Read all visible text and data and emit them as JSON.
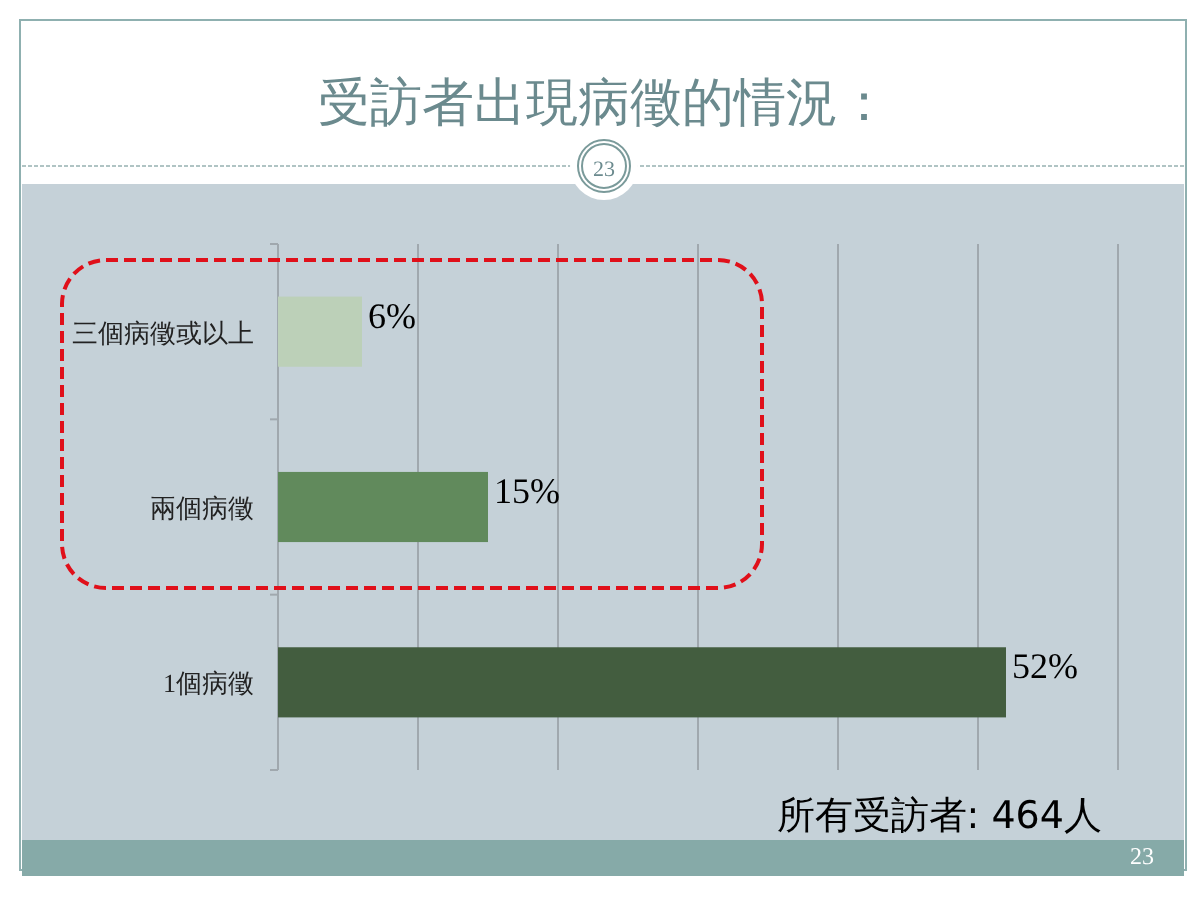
{
  "chart_data": {
    "type": "bar",
    "orientation": "horizontal",
    "title": "受訪者出現病徵的情況：",
    "categories": [
      "三個病徵或以上",
      "兩個病徵",
      "1個病徵"
    ],
    "values": [
      6,
      15,
      52
    ],
    "colors": [
      "#bcd0b8",
      "#618a5c",
      "#435d3f"
    ],
    "value_labels": [
      "6%",
      "15%",
      "52%"
    ],
    "xlim": [
      0,
      60
    ],
    "xticks": [
      {
        "value": 0,
        "label": null
      },
      {
        "value": 10,
        "label": null
      },
      {
        "value": 20,
        "label": null
      },
      {
        "value": 30,
        "label": null
      },
      {
        "value": 40,
        "label": null
      },
      {
        "value": 50,
        "label": null
      },
      {
        "value": 60,
        "label": null
      }
    ],
    "tick_labels": "y",
    "grid": "x",
    "annotations": [
      "所有受訪者: 464人",
      "23",
      "23"
    ]
  }
}
